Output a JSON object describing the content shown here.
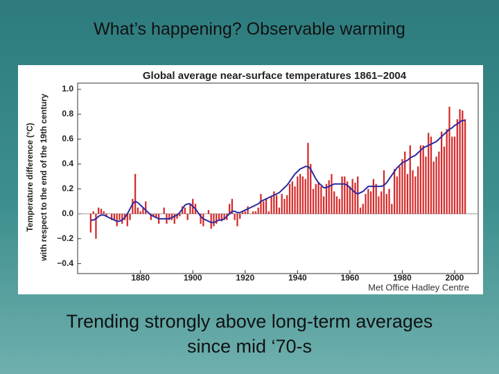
{
  "title": "What’s happening? Observable warming",
  "caption": [
    "Trending strongly above long-term averages",
    "since mid ‘70-s"
  ],
  "chart_data": {
    "type": "bar",
    "title": "Global average near-surface temperatures 1861–2004",
    "y_label": [
      "Temperature difference (°C)",
      "with respect to the end of the 19th century"
    ],
    "source": "Met Office Hadley Centre",
    "x": [
      1861,
      1862,
      1863,
      1864,
      1865,
      1866,
      1867,
      1868,
      1869,
      1870,
      1871,
      1872,
      1873,
      1874,
      1875,
      1876,
      1877,
      1878,
      1879,
      1880,
      1881,
      1882,
      1883,
      1884,
      1885,
      1886,
      1887,
      1888,
      1889,
      1890,
      1891,
      1892,
      1893,
      1894,
      1895,
      1896,
      1897,
      1898,
      1899,
      1900,
      1901,
      1902,
      1903,
      1904,
      1905,
      1906,
      1907,
      1908,
      1909,
      1910,
      1911,
      1912,
      1913,
      1914,
      1915,
      1916,
      1917,
      1918,
      1919,
      1920,
      1921,
      1922,
      1923,
      1924,
      1925,
      1926,
      1927,
      1928,
      1929,
      1930,
      1931,
      1932,
      1933,
      1934,
      1935,
      1936,
      1937,
      1938,
      1939,
      1940,
      1941,
      1942,
      1943,
      1944,
      1945,
      1946,
      1947,
      1948,
      1949,
      1950,
      1951,
      1952,
      1953,
      1954,
      1955,
      1956,
      1957,
      1958,
      1959,
      1960,
      1961,
      1962,
      1963,
      1964,
      1965,
      1966,
      1967,
      1968,
      1969,
      1970,
      1971,
      1972,
      1973,
      1974,
      1975,
      1976,
      1977,
      1978,
      1979,
      1980,
      1981,
      1982,
      1983,
      1984,
      1985,
      1986,
      1987,
      1988,
      1989,
      1990,
      1991,
      1992,
      1993,
      1994,
      1995,
      1996,
      1997,
      1998,
      1999,
      2000,
      2001,
      2002,
      2003,
      2004
    ],
    "series": [
      {
        "type": "bar",
        "color": "#d42a2a",
        "values": [
          -0.15,
          0.02,
          -0.2,
          0.05,
          0.04,
          0.02,
          -0.02,
          0.0,
          -0.05,
          -0.05,
          -0.1,
          -0.05,
          -0.08,
          -0.05,
          -0.1,
          -0.05,
          0.12,
          0.32,
          0.05,
          0.02,
          0.05,
          0.1,
          0.0,
          -0.05,
          -0.02,
          -0.03,
          -0.08,
          0.0,
          0.05,
          -0.08,
          -0.05,
          -0.05,
          -0.08,
          -0.04,
          -0.02,
          0.06,
          0.05,
          -0.05,
          0.08,
          0.12,
          0.08,
          0.0,
          -0.08,
          -0.1,
          0.0,
          0.03,
          -0.12,
          -0.1,
          -0.08,
          -0.05,
          -0.06,
          -0.05,
          -0.05,
          0.08,
          0.12,
          -0.05,
          -0.1,
          -0.04,
          0.02,
          0.02,
          0.06,
          0.0,
          0.02,
          0.02,
          0.05,
          0.16,
          0.1,
          0.12,
          0.02,
          0.14,
          0.18,
          0.15,
          0.05,
          0.16,
          0.12,
          0.15,
          0.24,
          0.26,
          0.22,
          0.3,
          0.32,
          0.3,
          0.28,
          0.57,
          0.4,
          0.2,
          0.24,
          0.25,
          0.22,
          0.14,
          0.24,
          0.27,
          0.32,
          0.18,
          0.14,
          0.12,
          0.3,
          0.3,
          0.26,
          0.22,
          0.28,
          0.25,
          0.3,
          0.05,
          0.08,
          0.16,
          0.2,
          0.18,
          0.28,
          0.24,
          0.14,
          0.18,
          0.35,
          0.16,
          0.2,
          0.08,
          0.36,
          0.3,
          0.38,
          0.44,
          0.5,
          0.32,
          0.55,
          0.35,
          0.3,
          0.38,
          0.55,
          0.55,
          0.46,
          0.65,
          0.62,
          0.42,
          0.46,
          0.5,
          0.66,
          0.54,
          0.68,
          0.86,
          0.62,
          0.62,
          0.76,
          0.84,
          0.83,
          0.76
        ]
      },
      {
        "type": "line",
        "color": "#2a2aa0",
        "values": [
          -0.05,
          -0.05,
          -0.04,
          -0.02,
          -0.01,
          -0.01,
          -0.02,
          -0.03,
          -0.04,
          -0.05,
          -0.06,
          -0.06,
          -0.05,
          -0.03,
          0.0,
          0.04,
          0.08,
          0.1,
          0.09,
          0.07,
          0.05,
          0.03,
          0.01,
          -0.01,
          -0.02,
          -0.03,
          -0.04,
          -0.04,
          -0.04,
          -0.04,
          -0.04,
          -0.03,
          -0.02,
          -0.01,
          0.01,
          0.04,
          0.07,
          0.08,
          0.08,
          0.06,
          0.04,
          0.01,
          -0.02,
          -0.04,
          -0.05,
          -0.06,
          -0.07,
          -0.07,
          -0.06,
          -0.05,
          -0.05,
          -0.04,
          -0.02,
          0.0,
          0.02,
          0.02,
          0.01,
          0.01,
          0.02,
          0.03,
          0.04,
          0.05,
          0.06,
          0.07,
          0.08,
          0.1,
          0.11,
          0.12,
          0.13,
          0.14,
          0.15,
          0.16,
          0.17,
          0.19,
          0.21,
          0.23,
          0.26,
          0.29,
          0.32,
          0.34,
          0.36,
          0.37,
          0.38,
          0.38,
          0.36,
          0.32,
          0.28,
          0.25,
          0.23,
          0.21,
          0.21,
          0.22,
          0.23,
          0.24,
          0.24,
          0.24,
          0.24,
          0.24,
          0.23,
          0.21,
          0.19,
          0.17,
          0.16,
          0.17,
          0.18,
          0.2,
          0.22,
          0.22,
          0.22,
          0.22,
          0.22,
          0.22,
          0.23,
          0.25,
          0.28,
          0.31,
          0.34,
          0.37,
          0.39,
          0.41,
          0.42,
          0.43,
          0.45,
          0.46,
          0.47,
          0.49,
          0.51,
          0.53,
          0.54,
          0.55,
          0.56,
          0.57,
          0.58,
          0.6,
          0.62,
          0.64,
          0.66,
          0.68,
          0.69,
          0.71,
          0.72,
          0.74,
          0.75,
          0.75
        ]
      }
    ],
    "xlim": [
      1856,
      2009
    ],
    "xticks": [
      1880,
      1900,
      1920,
      1940,
      1960,
      1980,
      2000
    ],
    "ylim": [
      -0.48,
      1.05
    ],
    "yticks": [
      {
        "value": -0.4,
        "label": "−0.4"
      },
      {
        "value": -0.2,
        "label": "−0.2"
      },
      {
        "value": 0,
        "label": "0.0"
      },
      {
        "value": 0.2,
        "label": "0.2"
      },
      {
        "value": 0.4,
        "label": "0.4"
      },
      {
        "value": 0.6,
        "label": "0.6"
      },
      {
        "value": 0.8,
        "label": "0.8"
      },
      {
        "value": 1.0,
        "label": "1.0"
      }
    ]
  }
}
